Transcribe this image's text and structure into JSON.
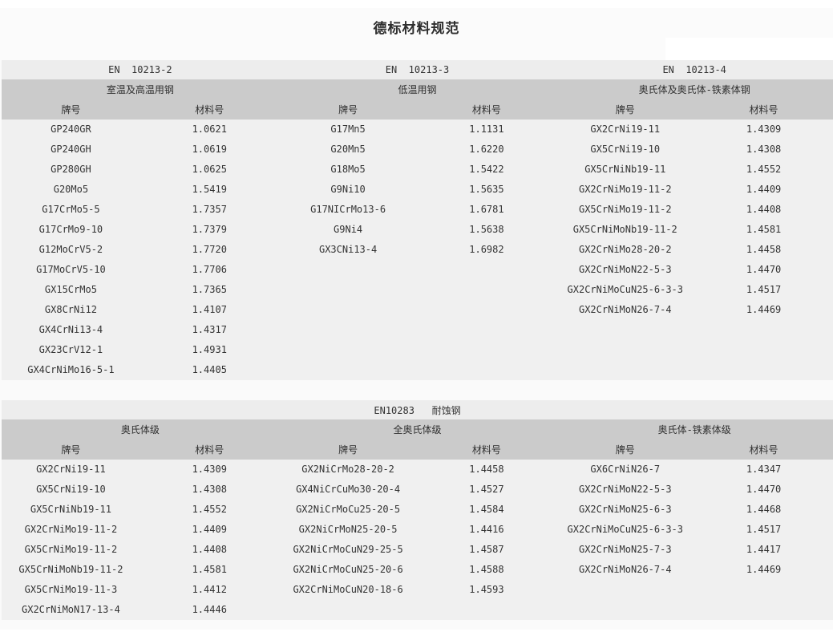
{
  "page": {
    "title": "德标材料规范"
  },
  "labels": {
    "grade": "牌号",
    "material": "材料号"
  },
  "colors": {
    "page_bg": "#fafafa",
    "en_band_bg": "#ededed",
    "group_band_bg": "#cbcbcb",
    "data_band_bg": "#f0f0f0",
    "text": "#333333",
    "title_text": "#2d2d2d"
  },
  "top_section": {
    "groups": [
      {
        "en": "EN  10213-2",
        "name": "室温及高温用钢",
        "rows": [
          [
            "GP240GR",
            "1.0621"
          ],
          [
            "GP240GH",
            "1.0619"
          ],
          [
            "GP280GH",
            "1.0625"
          ],
          [
            "G20Mo5",
            "1.5419"
          ],
          [
            "G17CrMo5-5",
            "1.7357"
          ],
          [
            "G17CrMo9-10",
            "1.7379"
          ],
          [
            "G12MoCrV5-2",
            "1.7720"
          ],
          [
            "G17MoCrV5-10",
            "1.7706"
          ],
          [
            "GX15CrMo5",
            "1.7365"
          ],
          [
            "GX8CrNi12",
            "1.4107"
          ],
          [
            "GX4CrNi13-4",
            "1.4317"
          ],
          [
            "GX23CrV12-1",
            "1.4931"
          ],
          [
            "GX4CrNiMo16-5-1",
            "1.4405"
          ]
        ]
      },
      {
        "en": "EN  10213-3",
        "name": "低温用钢",
        "rows": [
          [
            "G17Mn5",
            "1.1131"
          ],
          [
            "G20Mn5",
            "1.6220"
          ],
          [
            "G18Mo5",
            "1.5422"
          ],
          [
            "G9Ni10",
            "1.5635"
          ],
          [
            "G17NICrMo13-6",
            "1.6781"
          ],
          [
            "G9Ni4",
            "1.5638"
          ],
          [
            "GX3CNi13-4",
            "1.6982"
          ]
        ]
      },
      {
        "en": "EN  10213-4",
        "name": "奥氏体及奥氏体-铁素体钢",
        "rows": [
          [
            "GX2CrNi19-11",
            "1.4309"
          ],
          [
            "GX5CrNi19-10",
            "1.4308"
          ],
          [
            "GX5CrNiNb19-11",
            "1.4552"
          ],
          [
            "GX2CrNiMo19-11-2",
            "1.4409"
          ],
          [
            "GX5CrNiMo19-11-2",
            "1.4408"
          ],
          [
            "GX5CrNiMoNb19-11-2",
            "1.4581"
          ],
          [
            "GX2CrNiMo28-20-2",
            "1.4458"
          ],
          [
            "GX2CrNiMoN22-5-3",
            "1.4470"
          ],
          [
            "GX2CrNiMoCuN25-6-3-3",
            "1.4517"
          ],
          [
            "GX2CrNiMoN26-7-4",
            "1.4469"
          ]
        ]
      }
    ]
  },
  "bottom_section": {
    "en_title": "EN10283   耐蚀钢",
    "groups": [
      {
        "name": "奥氏体级",
        "rows": [
          [
            "GX2CrNi19-11",
            "1.4309"
          ],
          [
            "GX5CrNi19-10",
            "1.4308"
          ],
          [
            "GX5CrNiNb19-11",
            "1.4552"
          ],
          [
            "GX2CrNiMo19-11-2",
            "1.4409"
          ],
          [
            "GX5CrNiMo19-11-2",
            "1.4408"
          ],
          [
            "GX5CrNiMoNb19-11-2",
            "1.4581"
          ],
          [
            "GX5CrNiMo19-11-3",
            "1.4412"
          ],
          [
            "GX2CrNiMoN17-13-4",
            "1.4446"
          ]
        ]
      },
      {
        "name": "全奥氏体级",
        "rows": [
          [
            "GX2NiCrMo28-20-2",
            "1.4458"
          ],
          [
            "GX4NiCrCuMo30-20-4",
            "1.4527"
          ],
          [
            "GX2NiCrMoCu25-20-5",
            "1.4584"
          ],
          [
            "GX2NiCrMoN25-20-5",
            "1.4416"
          ],
          [
            "GX2NiCrMoCuN29-25-5",
            "1.4587"
          ],
          [
            "GX2NiCrMoCuN25-20-6",
            "1.4588"
          ],
          [
            "GX2CrNiMoCuN20-18-6",
            "1.4593"
          ]
        ]
      },
      {
        "name": "奥氏体-铁素体级",
        "rows": [
          [
            "GX6CrNiN26-7",
            "1.4347"
          ],
          [
            "GX2CrNiMoN22-5-3",
            "1.4470"
          ],
          [
            "GX2CrNiMoN25-6-3",
            "1.4468"
          ],
          [
            "GX2CrNiMoCuN25-6-3-3",
            "1.4517"
          ],
          [
            "GX2CrNiMoN25-7-3",
            "1.4417"
          ],
          [
            "GX2CrNiMoN26-7-4",
            "1.4469"
          ]
        ]
      }
    ]
  }
}
